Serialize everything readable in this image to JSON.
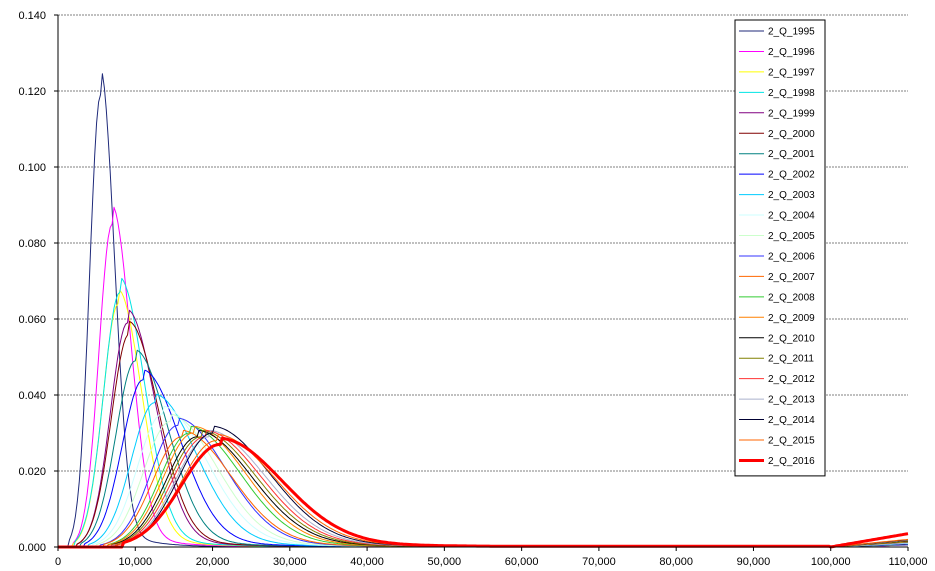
{
  "chart_data": {
    "type": "line",
    "title": "",
    "xlabel": "",
    "ylabel": "",
    "xlim": [
      0,
      110000
    ],
    "ylim": [
      0,
      0.14
    ],
    "x_ticks": [
      0,
      10000,
      20000,
      30000,
      40000,
      50000,
      60000,
      70000,
      80000,
      90000,
      100000,
      110000
    ],
    "x_tick_labels": [
      "0",
      "10,000",
      "20,000",
      "30,000",
      "40,000",
      "50,000",
      "60,000",
      "70,000",
      "80,000",
      "90,000",
      "100,000",
      "110,000"
    ],
    "y_ticks": [
      0,
      0.02,
      0.04,
      0.06,
      0.08,
      0.1,
      0.12,
      0.14
    ],
    "y_tick_labels": [
      "0.000",
      "0.020",
      "0.040",
      "0.060",
      "0.080",
      "0.100",
      "0.120",
      "0.140"
    ],
    "grid": "horizontal dashed",
    "legend_position": "top-right",
    "series": [
      {
        "name": "2_Q_1995",
        "color": "#1f2a7a",
        "width": 1,
        "peak_x": 5500,
        "peak_y": 0.119,
        "sigma_left": 1400,
        "sigma_right": 1800,
        "start_x": 1500,
        "tail_end": 0.0005
      },
      {
        "name": "2_Q_1996",
        "color": "#ff00ff",
        "width": 1,
        "peak_x": 7000,
        "peak_y": 0.085,
        "sigma_left": 1700,
        "sigma_right": 2400,
        "start_x": 2000,
        "tail_end": 0.0005
      },
      {
        "name": "2_Q_1997",
        "color": "#ffff00",
        "width": 1,
        "peak_x": 7800,
        "peak_y": 0.064,
        "sigma_left": 2000,
        "sigma_right": 3000,
        "start_x": 2000,
        "tail_end": 0.0006
      },
      {
        "name": "2_Q_1998",
        "color": "#00e5e5",
        "width": 1,
        "peak_x": 8000,
        "peak_y": 0.067,
        "sigma_left": 2100,
        "sigma_right": 3200,
        "start_x": 2200,
        "tail_end": 0.0006
      },
      {
        "name": "2_Q_1999",
        "color": "#800080",
        "width": 1,
        "peak_x": 9000,
        "peak_y": 0.059,
        "sigma_left": 2200,
        "sigma_right": 3600,
        "start_x": 2500,
        "tail_end": 0.0007
      },
      {
        "name": "2_Q_2000",
        "color": "#800000",
        "width": 1,
        "peak_x": 9200,
        "peak_y": 0.056,
        "sigma_left": 2300,
        "sigma_right": 3800,
        "start_x": 2500,
        "tail_end": 0.0008
      },
      {
        "name": "2_Q_2001",
        "color": "#008080",
        "width": 1,
        "peak_x": 10000,
        "peak_y": 0.049,
        "sigma_left": 2500,
        "sigma_right": 4200,
        "start_x": 3000,
        "tail_end": 0.0008
      },
      {
        "name": "2_Q_2002",
        "color": "#0000ff",
        "width": 1,
        "peak_x": 11000,
        "peak_y": 0.044,
        "sigma_left": 2700,
        "sigma_right": 4800,
        "start_x": 3500,
        "tail_end": 0.0009
      },
      {
        "name": "2_Q_2003",
        "color": "#00ccff",
        "width": 1,
        "peak_x": 12500,
        "peak_y": 0.038,
        "sigma_left": 3000,
        "sigma_right": 5400,
        "start_x": 4000,
        "tail_end": 0.001
      },
      {
        "name": "2_Q_2004",
        "color": "#ccffff",
        "width": 1,
        "peak_x": 13500,
        "peak_y": 0.035,
        "sigma_left": 3200,
        "sigma_right": 5800,
        "start_x": 4500,
        "tail_end": 0.001
      },
      {
        "name": "2_Q_2005",
        "color": "#ccffcc",
        "width": 1,
        "peak_x": 14500,
        "peak_y": 0.033,
        "sigma_left": 3400,
        "sigma_right": 6000,
        "start_x": 5000,
        "tail_end": 0.0011
      },
      {
        "name": "2_Q_2006",
        "color": "#3333ff",
        "width": 1,
        "peak_x": 15500,
        "peak_y": 0.032,
        "sigma_left": 3500,
        "sigma_right": 6200,
        "start_x": 5500,
        "tail_end": 0.0012
      },
      {
        "name": "2_Q_2007",
        "color": "#ff6600",
        "width": 1,
        "peak_x": 16000,
        "peak_y": 0.029,
        "sigma_left": 3700,
        "sigma_right": 6400,
        "start_x": 6000,
        "tail_end": 0.0013
      },
      {
        "name": "2_Q_2008",
        "color": "#33cc33",
        "width": 1,
        "peak_x": 17000,
        "peak_y": 0.03,
        "sigma_left": 3800,
        "sigma_right": 6600,
        "start_x": 6500,
        "tail_end": 0.0014
      },
      {
        "name": "2_Q_2009",
        "color": "#ff8000",
        "width": 1,
        "peak_x": 17500,
        "peak_y": 0.03,
        "sigma_left": 3900,
        "sigma_right": 6800,
        "start_x": 6500,
        "tail_end": 0.0015
      },
      {
        "name": "2_Q_2010",
        "color": "#000000",
        "width": 1,
        "peak_x": 18000,
        "peak_y": 0.029,
        "sigma_left": 4000,
        "sigma_right": 7000,
        "start_x": 7000,
        "tail_end": 0.0016
      },
      {
        "name": "2_Q_2011",
        "color": "#808000",
        "width": 1,
        "peak_x": 18500,
        "peak_y": 0.029,
        "sigma_left": 4100,
        "sigma_right": 7100,
        "start_x": 7000,
        "tail_end": 0.0017
      },
      {
        "name": "2_Q_2012",
        "color": "#ff3333",
        "width": 1,
        "peak_x": 19000,
        "peak_y": 0.029,
        "sigma_left": 4200,
        "sigma_right": 7200,
        "start_x": 7000,
        "tail_end": 0.0018
      },
      {
        "name": "2_Q_2013",
        "color": "#aab0cc",
        "width": 1,
        "peak_x": 19500,
        "peak_y": 0.029,
        "sigma_left": 4300,
        "sigma_right": 7300,
        "start_x": 7000,
        "tail_end": 0.0018
      },
      {
        "name": "2_Q_2014",
        "color": "#000033",
        "width": 1,
        "peak_x": 20000,
        "peak_y": 0.03,
        "sigma_left": 4400,
        "sigma_right": 7400,
        "start_x": 7500,
        "tail_end": 0.0019
      },
      {
        "name": "2_Q_2015",
        "color": "#ff6600",
        "width": 1,
        "peak_x": 20500,
        "peak_y": 0.028,
        "sigma_left": 4600,
        "sigma_right": 7600,
        "start_x": 7500,
        "tail_end": 0.002
      },
      {
        "name": "2_Q_2016",
        "color": "#ff0000",
        "width": 3,
        "peak_x": 21000,
        "peak_y": 0.027,
        "sigma_left": 5000,
        "sigma_right": 8000,
        "start_x": 8500,
        "tail_end": 0.0035
      }
    ]
  }
}
